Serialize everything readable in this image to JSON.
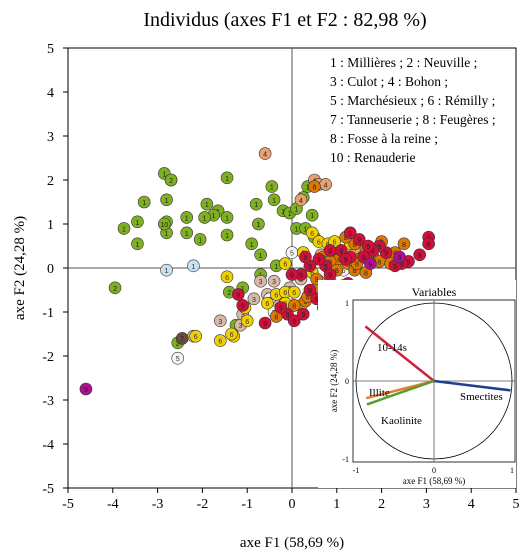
{
  "chart_data": {
    "type": "scatter",
    "title": "Individus (axes F1 et F2 : 82,98 %)",
    "xlabel": "axe F1 (58,69 %)",
    "ylabel": "axe F2 (24,28 %)",
    "xlim": [
      -5,
      5
    ],
    "ylim": [
      -5,
      5
    ],
    "xticks": [
      "-5",
      "-4",
      "-3",
      "-2",
      "-1",
      "0",
      "1",
      "2",
      "3",
      "4",
      "5"
    ],
    "yticks": [
      "-5",
      "-4",
      "-3",
      "-2",
      "-1",
      "0",
      "1",
      "2",
      "3",
      "4",
      "5"
    ],
    "grid": false,
    "legend_lines": [
      "1 : Millières ; 2 : Neuville ;",
      "3 : Culot ; 4 : Bohon ;",
      "5 : Marchésieux ; 6 : Rémilly ;",
      "7 : Tanneuserie ; 8 : Feugères ;",
      "8 : Fosse à la reine ;",
      "10 : Renauderie"
    ],
    "colors": {
      "1": "#7fb021",
      "2": "#7fb021",
      "3": "#d8b8a8",
      "4": "#e8a070",
      "5": "#f5f5f5",
      "6": "#f0d000",
      "7": "#6a4a3a",
      "8": "#e07800",
      "9": "#d0103a",
      "10": "#7fb021",
      "blue": "#c8e0f0",
      "purple": "#b01090"
    },
    "series": [
      {
        "group": "1",
        "points": [
          [
            -2.85,
            2.15
          ],
          [
            -2.7,
            2.0
          ],
          [
            -1.45,
            2.05
          ],
          [
            -3.3,
            1.5
          ],
          [
            -2.8,
            1.55
          ],
          [
            -1.9,
            1.45
          ],
          [
            -1.65,
            1.3
          ],
          [
            -1.75,
            1.2
          ],
          [
            -2.35,
            1.15
          ],
          [
            -1.95,
            1.15
          ],
          [
            -1.45,
            1.15
          ],
          [
            -0.8,
            1.45
          ],
          [
            -0.45,
            1.85
          ],
          [
            -0.4,
            1.55
          ],
          [
            -0.2,
            1.3
          ],
          [
            -0.05,
            1.25
          ],
          [
            0.1,
            1.35
          ],
          [
            0.35,
            1.85
          ],
          [
            0.25,
            1.6
          ],
          [
            0.45,
            1.2
          ],
          [
            -3.75,
            0.9
          ],
          [
            -3.45,
            1.05
          ],
          [
            -2.8,
            1.05
          ],
          [
            -2.8,
            0.8
          ],
          [
            -2.35,
            0.8
          ],
          [
            -2.05,
            0.65
          ],
          [
            -1.45,
            0.75
          ],
          [
            -0.9,
            0.55
          ],
          [
            -0.75,
            1.0
          ],
          [
            -0.7,
            0.3
          ],
          [
            -0.35,
            0.05
          ],
          [
            -0.7,
            -0.15
          ],
          [
            -3.45,
            0.55
          ],
          [
            0.1,
            0.9
          ],
          [
            0.3,
            0.9
          ],
          [
            -1.1,
            -0.45
          ]
        ]
      },
      {
        "group": "2",
        "points": [
          [
            -2.7,
            2.0
          ],
          [
            -3.95,
            -0.45
          ],
          [
            -2.55,
            -1.7
          ],
          [
            -1.4,
            -0.55
          ],
          [
            -1.25,
            -1.3
          ],
          [
            0.95,
            0.5
          ],
          [
            0.5,
            0.7
          ]
        ]
      },
      {
        "group": "10",
        "points": [
          [
            -2.85,
            1.0
          ]
        ]
      },
      {
        "group": "4",
        "points": [
          [
            0.5,
            2.0
          ],
          [
            0.6,
            1.9
          ],
          [
            0.75,
            1.9
          ],
          [
            -0.6,
            2.6
          ],
          [
            0.2,
            1.55
          ],
          [
            1.25,
            0.7
          ],
          [
            0.65,
            0.3
          ],
          [
            0.95,
            0.3
          ],
          [
            1.4,
            0.45
          ],
          [
            0.6,
            -0.3
          ]
        ]
      },
      {
        "group": "3",
        "points": [
          [
            -0.7,
            -0.3
          ],
          [
            -0.85,
            -0.7
          ],
          [
            -0.55,
            -0.6
          ],
          [
            -0.35,
            -0.85
          ],
          [
            0.45,
            -0.1
          ],
          [
            0.2,
            -0.25
          ],
          [
            -0.05,
            -0.45
          ],
          [
            -1.6,
            -1.2
          ],
          [
            -1.1,
            -1.05
          ],
          [
            -1.15,
            -1.3
          ],
          [
            -2.2,
            -1.55
          ],
          [
            -0.4,
            -0.3
          ]
        ]
      },
      {
        "group": "5",
        "points": [
          [
            -2.55,
            -2.05
          ],
          [
            0.0,
            0.35
          ],
          [
            -0.5,
            -0.7
          ],
          [
            -0.4,
            -1.0
          ],
          [
            0.65,
            -0.55
          ],
          [
            1.05,
            0.1
          ],
          [
            1.15,
            -0.05
          ]
        ]
      },
      {
        "group": "6",
        "points": [
          [
            -1.45,
            -0.2
          ],
          [
            -1.3,
            -1.55
          ],
          [
            -1.6,
            -1.65
          ],
          [
            -1.35,
            -1.5
          ],
          [
            -1.05,
            -0.9
          ],
          [
            -1.0,
            -1.2
          ],
          [
            -0.35,
            -0.6
          ],
          [
            -0.15,
            -0.55
          ],
          [
            0.05,
            -0.55
          ],
          [
            -0.15,
            -0.8
          ],
          [
            -0.55,
            -0.8
          ],
          [
            0.25,
            0.35
          ],
          [
            0.45,
            -0.1
          ],
          [
            0.2,
            -0.85
          ],
          [
            0.45,
            0.8
          ],
          [
            0.6,
            0.6
          ],
          [
            0.8,
            0.55
          ],
          [
            0.95,
            0.6
          ],
          [
            1.3,
            0.55
          ],
          [
            -2.15,
            -1.55
          ],
          [
            -0.15,
            0.1
          ]
        ]
      },
      {
        "group": "7",
        "points": [
          [
            -2.45,
            -1.6
          ]
        ]
      },
      {
        "group": "8",
        "points": [
          [
            0.5,
            1.85
          ],
          [
            0.7,
            0.25
          ],
          [
            1.05,
            0.2
          ],
          [
            1.5,
            0.2
          ],
          [
            1.8,
            0.3
          ],
          [
            1.95,
            0.15
          ],
          [
            2.2,
            0.1
          ],
          [
            2.3,
            0.35
          ],
          [
            2.5,
            0.55
          ],
          [
            1.65,
            0.45
          ],
          [
            1.4,
            0.55
          ],
          [
            0.85,
            0.15
          ],
          [
            1.25,
            0.1
          ],
          [
            1.0,
            -0.05
          ],
          [
            1.4,
            -0.05
          ],
          [
            0.3,
            -0.75
          ],
          [
            0.55,
            -0.25
          ],
          [
            2.0,
            0.6
          ],
          [
            0.85,
            -0.3
          ],
          [
            1.65,
            -0.1
          ],
          [
            1.15,
            -0.4
          ],
          [
            0.5,
            -0.5
          ],
          [
            1.45,
            0.1
          ],
          [
            1.2,
            0.7
          ],
          [
            -0.35,
            -1.1
          ],
          [
            0.05,
            -0.85
          ],
          [
            0.35,
            -0.65
          ]
        ]
      },
      {
        "group": "9",
        "points": [
          [
            -1.1,
            -0.85
          ],
          [
            -0.6,
            -1.25
          ],
          [
            -1.2,
            -0.6
          ],
          [
            3.05,
            0.7
          ],
          [
            3.05,
            0.55
          ],
          [
            2.85,
            0.3
          ],
          [
            2.6,
            0.15
          ],
          [
            2.45,
            0.1
          ],
          [
            2.1,
            0.35
          ],
          [
            1.95,
            0.5
          ],
          [
            1.8,
            0.4
          ],
          [
            1.6,
            0.25
          ],
          [
            1.3,
            0.25
          ],
          [
            1.1,
            0.4
          ],
          [
            0.85,
            0.4
          ],
          [
            0.75,
            0.05
          ],
          [
            0.6,
            0.2
          ],
          [
            1.5,
            0.65
          ],
          [
            1.3,
            0.8
          ],
          [
            0.2,
            -0.15
          ],
          [
            0.4,
            -0.5
          ],
          [
            0.7,
            -0.9
          ],
          [
            -0.1,
            -1.05
          ],
          [
            0.05,
            -1.2
          ],
          [
            0.25,
            -1.05
          ],
          [
            -0.25,
            -0.9
          ],
          [
            1.25,
            -0.35
          ],
          [
            0.55,
            -0.7
          ],
          [
            0.85,
            -0.15
          ],
          [
            1.7,
            0.5
          ],
          [
            2.3,
            0.05
          ],
          [
            0.4,
            0.05
          ],
          [
            1.2,
            0.2
          ],
          [
            0.9,
            -0.45
          ],
          [
            0.3,
            0.25
          ],
          [
            0.0,
            -0.15
          ]
        ]
      },
      {
        "group": "blue",
        "points": [
          [
            -2.8,
            -0.05
          ],
          [
            -2.2,
            0.05
          ]
        ]
      },
      {
        "group": "purple",
        "points": [
          [
            -4.6,
            -2.75
          ],
          [
            2.4,
            0.25
          ],
          [
            1.75,
            0.1
          ]
        ]
      }
    ],
    "inset": {
      "title": "Variables",
      "xlabel": "axe F1 (58,69 %)",
      "ylabel": "axe F2 (24,28 %)",
      "xticks": [
        "-1",
        "0",
        "1"
      ],
      "yticks": [
        "-1",
        "0",
        "1"
      ],
      "vectors": [
        {
          "name": "10-14s",
          "x": -0.88,
          "y": 0.7,
          "color": "#d0203a"
        },
        {
          "name": "Smectites",
          "x": 0.98,
          "y": -0.12,
          "color": "#1f3f8f"
        },
        {
          "name": "Illite",
          "x": -0.87,
          "y": -0.22,
          "color": "#e08030"
        },
        {
          "name": "Kaolinite",
          "x": -0.86,
          "y": -0.3,
          "color": "#5a9a30"
        }
      ]
    }
  }
}
